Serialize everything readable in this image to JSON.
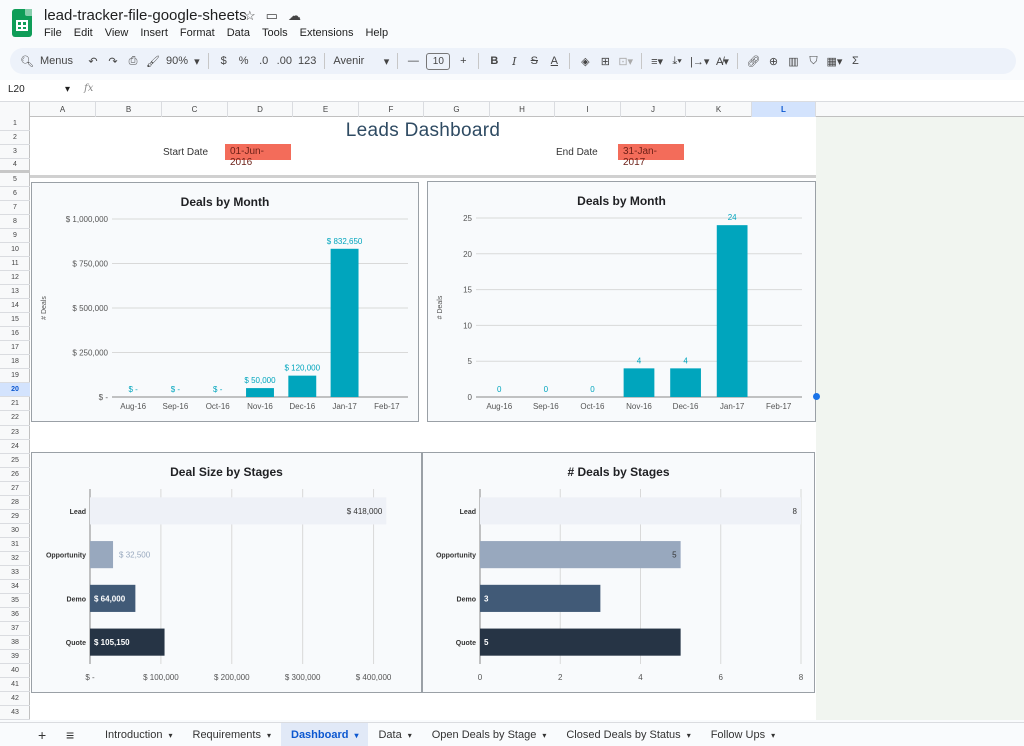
{
  "app": {
    "doc_title": "lead-tracker-file-google-sheets",
    "menu": [
      "File",
      "Edit",
      "View",
      "Insert",
      "Format",
      "Data",
      "Tools",
      "Extensions",
      "Help"
    ]
  },
  "toolbar": {
    "menus_label": "Menus",
    "zoom": "90%",
    "currency": "$",
    "percent": "%",
    "dec_decrease": ".0",
    "dec_increase": ".00",
    "number_format": "123",
    "font": "Avenir",
    "font_size": "10"
  },
  "formula_bar": {
    "cell_ref": "L20",
    "fx": "fx"
  },
  "grid": {
    "columns": [
      "A",
      "B",
      "C",
      "D",
      "E",
      "F",
      "G",
      "H",
      "I",
      "J",
      "K",
      "L"
    ],
    "selected_column": "L",
    "selected_row": "20",
    "rows": [
      "1",
      "2",
      "3",
      "4",
      "5",
      "6",
      "7",
      "8",
      "9",
      "10",
      "11",
      "12",
      "13",
      "14",
      "15",
      "16",
      "17",
      "18",
      "19",
      "20",
      "21",
      "22",
      "23",
      "24",
      "25",
      "26",
      "27",
      "28",
      "29",
      "30",
      "31",
      "32",
      "33",
      "34",
      "35",
      "36",
      "37",
      "38",
      "39",
      "40",
      "41",
      "42",
      "43"
    ]
  },
  "dashboard": {
    "title": "Leads Dashboard",
    "start_label": "Start Date",
    "start_value": "01-Jun-2016",
    "end_label": "End Date",
    "end_value": "31-Jan-2017"
  },
  "colors": {
    "bar_teal": "#00a5bd",
    "stage_lead": "#eef1f7",
    "stage_opportunity": "#98a8be",
    "stage_demo": "#415a77",
    "stage_quote": "#263445",
    "date_highlight": "#f36c5a"
  },
  "chart_data": [
    {
      "type": "bar",
      "title": "Deals by Month",
      "ylabel": "# Deals",
      "categories": [
        "Aug-16",
        "Sep-16",
        "Oct-16",
        "Nov-16",
        "Dec-16",
        "Jan-17",
        "Feb-17"
      ],
      "values": [
        0,
        0,
        0,
        50000,
        120000,
        832650,
        null
      ],
      "data_labels": [
        "$ -",
        "$ -",
        "$ -",
        "$ 50,000",
        "$ 120,000",
        "$ 832,650",
        ""
      ],
      "yticks": [
        0,
        250000,
        500000,
        750000,
        1000000
      ],
      "ytick_labels": [
        "$ -",
        "$ 250,000",
        "$ 500,000",
        "$ 750,000",
        "$ 1,000,000"
      ],
      "ylim": [
        0,
        1000000
      ],
      "grid": true
    },
    {
      "type": "bar",
      "title": "Deals by Month",
      "ylabel": "# Deals",
      "categories": [
        "Aug-16",
        "Sep-16",
        "Oct-16",
        "Nov-16",
        "Dec-16",
        "Jan-17",
        "Feb-17"
      ],
      "values": [
        0,
        0,
        0,
        4,
        4,
        24,
        null
      ],
      "data_labels": [
        "0",
        "0",
        "0",
        "4",
        "4",
        "24",
        ""
      ],
      "yticks": [
        0,
        5,
        10,
        15,
        20,
        25
      ],
      "ytick_labels": [
        "0",
        "5",
        "10",
        "15",
        "20",
        "25"
      ],
      "ylim": [
        0,
        25
      ],
      "grid": true
    },
    {
      "type": "bar",
      "orientation": "horizontal",
      "title": "Deal Size by Stages",
      "categories": [
        "Lead",
        "Opportunity",
        "Demo",
        "Quote"
      ],
      "values": [
        418000,
        32500,
        64000,
        105150
      ],
      "data_labels": [
        "$ 418,000",
        "$ 32,500",
        "$ 64,000",
        "$ 105,150"
      ],
      "xticks": [
        0,
        100000,
        200000,
        300000,
        400000
      ],
      "xtick_labels": [
        "$ -",
        "$ 100,000",
        "$ 200,000",
        "$ 300,000",
        "$ 400,000"
      ],
      "xlim": [
        0,
        450000
      ],
      "grid": true
    },
    {
      "type": "bar",
      "orientation": "horizontal",
      "title": "# Deals by Stages",
      "categories": [
        "Lead",
        "Opportunity",
        "Demo",
        "Quote"
      ],
      "values": [
        8,
        5,
        3,
        5
      ],
      "data_labels": [
        "8",
        "5",
        "3",
        "5"
      ],
      "xticks": [
        0,
        2,
        4,
        6,
        8
      ],
      "xtick_labels": [
        "0",
        "2",
        "4",
        "6",
        "8"
      ],
      "xlim": [
        0,
        8
      ],
      "grid": true
    }
  ],
  "tabs": {
    "items": [
      "Introduction",
      "Requirements",
      "Dashboard",
      "Data",
      "Open Deals by Stage",
      "Closed Deals by Status",
      "Follow Ups"
    ],
    "active": "Dashboard"
  }
}
